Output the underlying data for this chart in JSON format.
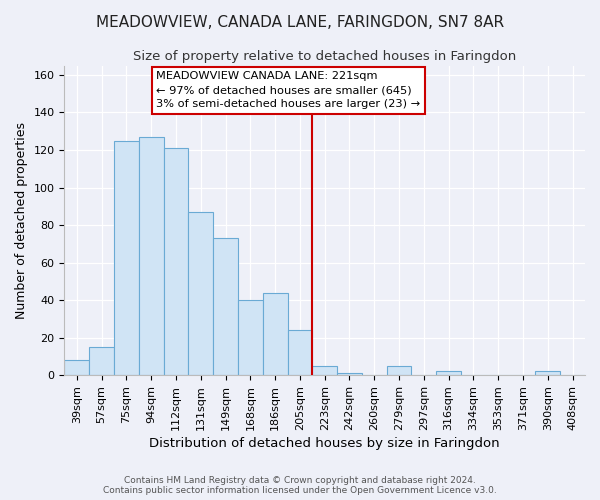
{
  "title": "MEADOWVIEW, CANADA LANE, FARINGDON, SN7 8AR",
  "subtitle": "Size of property relative to detached houses in Faringdon",
  "xlabel": "Distribution of detached houses by size in Faringdon",
  "ylabel": "Number of detached properties",
  "bar_labels": [
    "39sqm",
    "57sqm",
    "75sqm",
    "94sqm",
    "112sqm",
    "131sqm",
    "149sqm",
    "168sqm",
    "186sqm",
    "205sqm",
    "223sqm",
    "242sqm",
    "260sqm",
    "279sqm",
    "297sqm",
    "316sqm",
    "334sqm",
    "353sqm",
    "371sqm",
    "390sqm",
    "408sqm"
  ],
  "bar_heights": [
    8,
    15,
    125,
    127,
    121,
    87,
    73,
    40,
    44,
    24,
    5,
    1,
    0,
    5,
    0,
    2,
    0,
    0,
    0,
    2,
    0
  ],
  "bar_color": "#d0e4f5",
  "bar_edge_color": "#6aaad4",
  "vline_color": "#cc0000",
  "annotation_text": "MEADOWVIEW CANADA LANE: 221sqm\n← 97% of detached houses are smaller (645)\n3% of semi-detached houses are larger (23) →",
  "annotation_box_color": "#ffffff",
  "annotation_box_edge": "#cc0000",
  "ylim": [
    0,
    165
  ],
  "yticks": [
    0,
    20,
    40,
    60,
    80,
    100,
    120,
    140,
    160
  ],
  "footer_text": "Contains HM Land Registry data © Crown copyright and database right 2024.\nContains public sector information licensed under the Open Government Licence v3.0.",
  "background_color": "#eef0f8",
  "grid_color": "#ffffff",
  "title_fontsize": 11,
  "subtitle_fontsize": 9.5,
  "ylabel_fontsize": 9,
  "xlabel_fontsize": 9.5,
  "tick_fontsize": 8,
  "footer_fontsize": 6.5
}
